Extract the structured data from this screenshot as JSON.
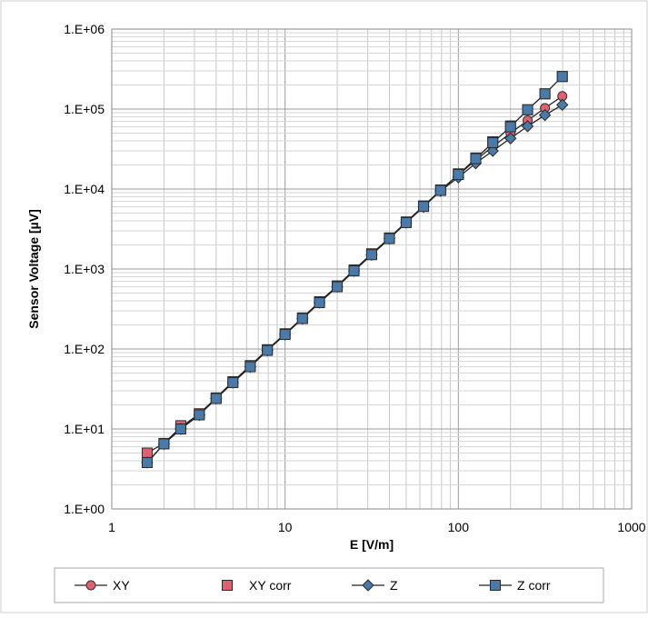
{
  "chart_data": {
    "type": "line",
    "xlabel": "E [V/m]",
    "ylabel": "Sensor Voltage [µV]",
    "x_scale": "log",
    "y_scale": "log",
    "xlim": [
      1,
      1000
    ],
    "ylim": [
      1,
      1000000
    ],
    "grid": true,
    "legend_position": "bottom",
    "x_tick_labels": [
      "1",
      "10",
      "100",
      "1000"
    ],
    "y_tick_labels": [
      "1.E+00",
      "1.E+01",
      "1.E+02",
      "1.E+03",
      "1.E+04",
      "1.E+05",
      "1.E+06"
    ],
    "x": [
      1.6,
      2.0,
      2.5,
      3.2,
      4.0,
      5.0,
      6.3,
      7.9,
      10,
      12.6,
      15.8,
      20,
      25,
      31.6,
      40,
      50,
      63,
      79,
      100,
      126,
      158,
      200,
      251,
      316,
      398
    ],
    "series": [
      {
        "name": "XY",
        "color": "#e06070",
        "marker": "circle",
        "values": [
          5.0,
          6.6,
          10.5,
          15.5,
          24.5,
          39,
          62,
          98,
          155,
          245,
          390,
          615,
          975,
          1550,
          2450,
          3880,
          6150,
          9700,
          15000,
          23000,
          34000,
          50000,
          72000,
          103000,
          145000
        ]
      },
      {
        "name": "XY corr",
        "color": "#e06070",
        "marker": "square",
        "values": [
          5.0,
          6.6,
          11.0,
          15.5,
          24.5,
          39,
          62,
          98,
          155,
          245,
          390,
          615,
          975,
          1550,
          2450,
          3880,
          6150,
          9750,
          15500,
          24500,
          39000,
          61500,
          98000,
          155000,
          255000
        ]
      },
      {
        "name": "Z",
        "color": "#4a7aaa",
        "marker": "diamond",
        "values": [
          3.8,
          6.5,
          10.0,
          15.0,
          24.0,
          38,
          60,
          96,
          152,
          240,
          380,
          600,
          950,
          1510,
          2400,
          3800,
          6000,
          9500,
          14000,
          21000,
          30000,
          43000,
          61000,
          84000,
          113000
        ]
      },
      {
        "name": "Z corr",
        "color": "#4a7aaa",
        "marker": "square",
        "values": [
          3.8,
          6.5,
          10.0,
          15.0,
          24.0,
          38,
          60,
          96,
          152,
          240,
          380,
          600,
          950,
          1510,
          2400,
          3800,
          6050,
          9600,
          15200,
          24000,
          38000,
          60000,
          98000,
          155000,
          255000
        ]
      }
    ]
  }
}
